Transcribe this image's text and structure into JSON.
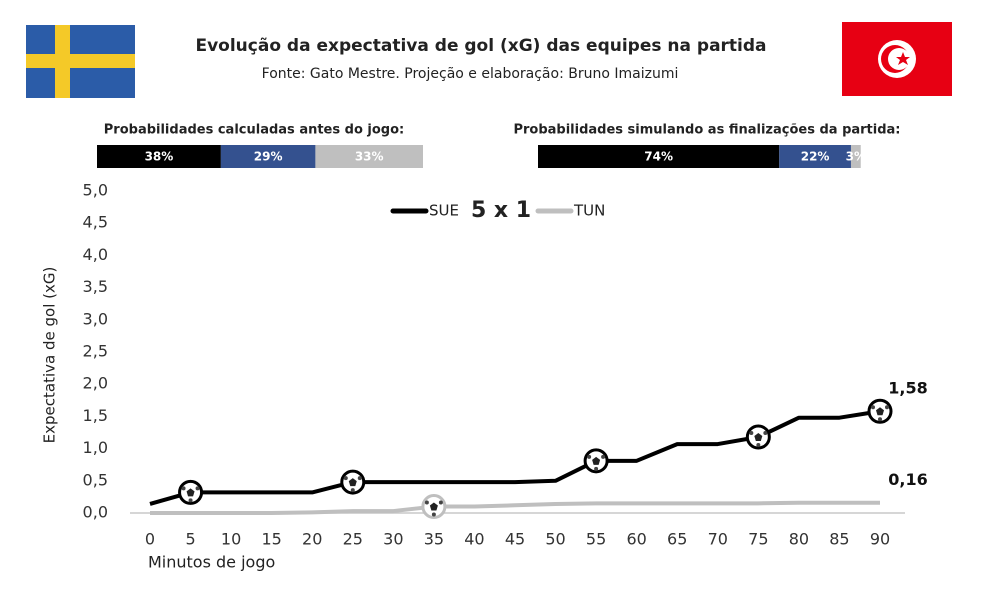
{
  "chart_data": {
    "type": "line",
    "title": "Evolução da expectativa de gol (xG) das equipes na partida",
    "subtitle": "Fonte: Gato Mestre. Projeção e elaboração: Bruno Imaizumi",
    "score": "5 x 1",
    "x_label": "Minutos de jogo",
    "y_label": "Expectativa de gol (xG)",
    "x": [
      0,
      5,
      10,
      15,
      20,
      25,
      30,
      35,
      40,
      45,
      50,
      55,
      60,
      65,
      70,
      75,
      80,
      85,
      90
    ],
    "series": [
      {
        "name": "SUE",
        "color": "#000000",
        "values": [
          0.14,
          0.32,
          0.32,
          0.32,
          0.32,
          0.48,
          0.48,
          0.48,
          0.48,
          0.48,
          0.5,
          0.81,
          0.81,
          1.07,
          1.07,
          1.18,
          1.48,
          1.48,
          1.58
        ],
        "value_labels": [
          null,
          null,
          null,
          null,
          null,
          null,
          null,
          null,
          null,
          null,
          null,
          null,
          null,
          null,
          null,
          null,
          null,
          null,
          "1,58"
        ],
        "goals": [
          5,
          25,
          55,
          75,
          90
        ]
      },
      {
        "name": "TUN",
        "color": "#bfbfbf",
        "values": [
          0,
          0,
          0,
          0,
          0.01,
          0.03,
          0.03,
          0.1,
          0.1,
          0.12,
          0.14,
          0.15,
          0.15,
          0.15,
          0.15,
          0.15,
          0.16,
          0.16,
          0.16
        ],
        "value_labels": [
          null,
          null,
          null,
          null,
          null,
          null,
          null,
          null,
          null,
          null,
          null,
          null,
          null,
          null,
          null,
          null,
          null,
          null,
          "0,16"
        ],
        "goals": [
          35
        ]
      }
    ],
    "xlim": [
      0,
      90
    ],
    "xticks": [
      0,
      5,
      10,
      15,
      20,
      25,
      30,
      35,
      40,
      45,
      50,
      55,
      60,
      65,
      70,
      75,
      80,
      85,
      90
    ],
    "ylim": [
      0,
      5
    ],
    "yticks": [
      {
        "value": 0,
        "label": "0,0"
      },
      {
        "value": 0.5,
        "label": "0,5"
      },
      {
        "value": 1,
        "label": "1,0"
      },
      {
        "value": 1.5,
        "label": "1,5"
      },
      {
        "value": 2,
        "label": "2,0"
      },
      {
        "value": 2.5,
        "label": "2,5"
      },
      {
        "value": 3,
        "label": "3,0"
      },
      {
        "value": 3.5,
        "label": "3,5"
      },
      {
        "value": 4,
        "label": "4,0"
      },
      {
        "value": 4.5,
        "label": "4,5"
      },
      {
        "value": 5,
        "label": "5,0"
      }
    ],
    "probability_bars": [
      {
        "title": "Probabilidades calculadas antes do jogo:",
        "values": [
          38,
          29,
          33
        ],
        "value_labels": [
          "38%",
          "29%",
          "33%"
        ],
        "colors": [
          "#000000",
          "#34518f",
          "#bfbfbf"
        ]
      },
      {
        "title": "Probabilidades simulando as finalizações da partida:",
        "values": [
          74,
          22,
          3
        ],
        "value_labels": [
          "74%",
          "22%",
          "3%"
        ],
        "colors": [
          "#000000",
          "#34518f",
          "#bfbfbf"
        ]
      }
    ]
  }
}
